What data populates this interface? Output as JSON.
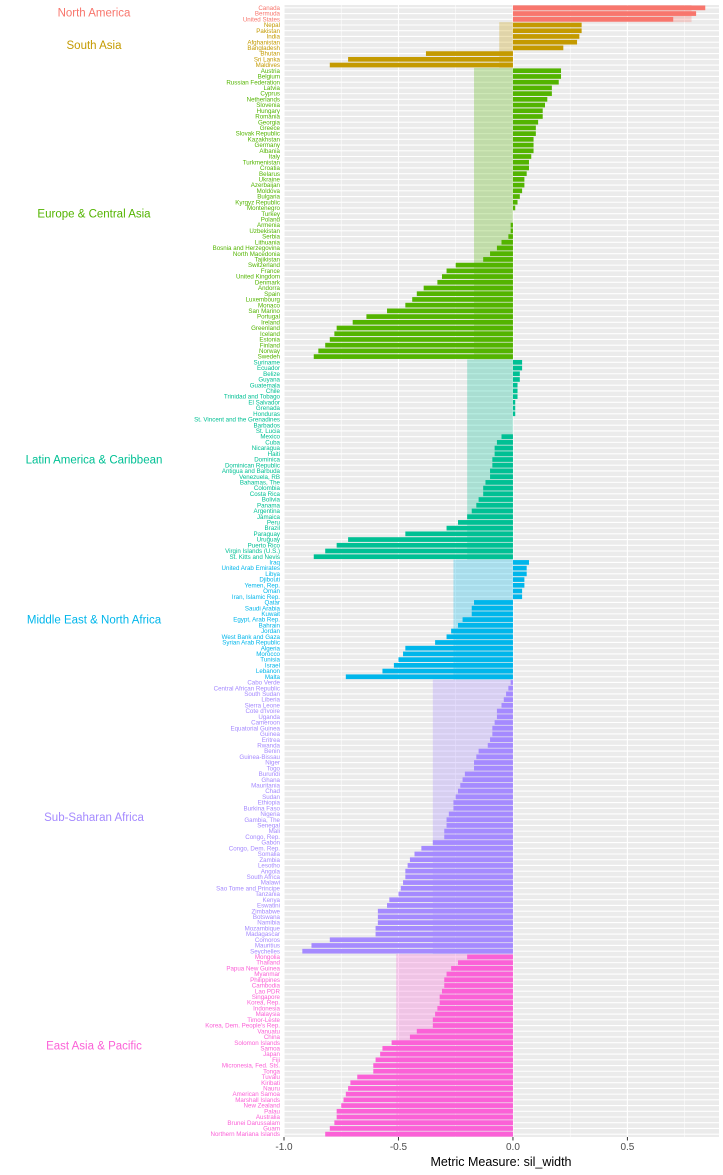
{
  "chart_data": {
    "type": "bar",
    "orientation": "horizontal",
    "xlabel": "Metric Measure: sil_width",
    "ylabel": "",
    "xlim": [
      -1.0,
      0.9
    ],
    "xticks": [
      -1.0,
      -0.5,
      0.0,
      0.5
    ],
    "xtick_labels": [
      "-1.0",
      "-0.5",
      "0.0",
      "0.5"
    ],
    "grid": true,
    "legend": "none",
    "background": "#ebebeb",
    "groups": [
      {
        "name": "North America",
        "color": "#f8766d",
        "mean": 0.78,
        "countries": [
          "Canada",
          "Bermuda",
          "United States"
        ],
        "values": [
          0.84,
          0.8,
          0.7
        ]
      },
      {
        "name": "South Asia",
        "color": "#c49a00",
        "mean": -0.06,
        "countries": [
          "Nepal",
          "Pakistan",
          "India",
          "Afghanistan",
          "Bangladesh",
          "Bhutan",
          "Sri Lanka",
          "Maldives"
        ],
        "values": [
          0.3,
          0.3,
          0.29,
          0.28,
          0.22,
          -0.38,
          -0.72,
          -0.8
        ]
      },
      {
        "name": "Europe & Central Asia",
        "color": "#53b400",
        "mean": -0.17,
        "countries": [
          "Austria",
          "Belgium",
          "Russian Federation",
          "Latvia",
          "Cyprus",
          "Netherlands",
          "Slovenia",
          "Hungary",
          "Romania",
          "Georgia",
          "Greece",
          "Slovak Republic",
          "Kazakhstan",
          "Germany",
          "Albania",
          "Italy",
          "Turkmenistan",
          "Croatia",
          "Belarus",
          "Ukraine",
          "Azerbaijan",
          "Moldova",
          "Bulgaria",
          "Kyrgyz Republic",
          "Montenegro",
          "Turkey",
          "Poland",
          "Armenia",
          "Uzbekistan",
          "Serbia",
          "Lithuania",
          "Bosnia and Herzegovina",
          "North Macedonia",
          "Tajikistan",
          "Switzerland",
          "France",
          "United Kingdom",
          "Denmark",
          "Andorra",
          "Spain",
          "Luxembourg",
          "Monaco",
          "San Marino",
          "Portugal",
          "Ireland",
          "Greenland",
          "Iceland",
          "Estonia",
          "Finland",
          "Norway",
          "Sweden"
        ],
        "values": [
          0.21,
          0.21,
          0.2,
          0.17,
          0.17,
          0.15,
          0.14,
          0.13,
          0.13,
          0.11,
          0.1,
          0.1,
          0.09,
          0.09,
          0.09,
          0.08,
          0.07,
          0.07,
          0.06,
          0.05,
          0.05,
          0.04,
          0.03,
          0.02,
          0.01,
          0.0,
          0.0,
          -0.01,
          -0.01,
          -0.02,
          -0.05,
          -0.07,
          -0.1,
          -0.13,
          -0.25,
          -0.29,
          -0.31,
          -0.33,
          -0.39,
          -0.42,
          -0.44,
          -0.47,
          -0.55,
          -0.64,
          -0.7,
          -0.77,
          -0.78,
          -0.8,
          -0.82,
          -0.85,
          -0.87
        ]
      },
      {
        "name": "Latin America & Caribbean",
        "color": "#00c094",
        "mean": -0.2,
        "countries": [
          "Suriname",
          "Ecuador",
          "Belize",
          "Guyana",
          "Guatemala",
          "Chile",
          "Trinidad and Tobago",
          "El Salvador",
          "Grenada",
          "Honduras",
          "St. Vincent and the Grenadines",
          "Barbados",
          "St. Lucia",
          "Mexico",
          "Cuba",
          "Nicaragua",
          "Haiti",
          "Dominica",
          "Dominican Republic",
          "Antigua and Barbuda",
          "Venezuela, RB",
          "Bahamas, The",
          "Colombia",
          "Costa Rica",
          "Bolivia",
          "Panama",
          "Argentina",
          "Jamaica",
          "Peru",
          "Brazil",
          "Paraguay",
          "Uruguay",
          "Puerto Rico",
          "Virgin Islands (U.S.)",
          "St. Kitts and Nevis"
        ],
        "values": [
          0.04,
          0.04,
          0.03,
          0.03,
          0.02,
          0.02,
          0.02,
          0.01,
          0.01,
          0.01,
          0.0,
          0.0,
          0.0,
          -0.05,
          -0.07,
          -0.08,
          -0.08,
          -0.09,
          -0.09,
          -0.1,
          -0.1,
          -0.12,
          -0.13,
          -0.13,
          -0.15,
          -0.16,
          -0.18,
          -0.2,
          -0.24,
          -0.29,
          -0.47,
          -0.72,
          -0.77,
          -0.82,
          -0.87
        ]
      },
      {
        "name": "Middle East & North Africa",
        "color": "#00b6eb",
        "mean": -0.26,
        "countries": [
          "Iraq",
          "United Arab Emirates",
          "Libya",
          "Djibouti",
          "Yemen, Rep.",
          "Oman",
          "Iran, Islamic Rep.",
          "Qatar",
          "Saudi Arabia",
          "Kuwait",
          "Egypt, Arab Rep.",
          "Bahrain",
          "Jordan",
          "West Bank and Gaza",
          "Syrian Arab Republic",
          "Algeria",
          "Morocco",
          "Tunisia",
          "Israel",
          "Lebanon",
          "Malta"
        ],
        "values": [
          0.07,
          0.06,
          0.06,
          0.05,
          0.05,
          0.04,
          0.04,
          -0.17,
          -0.18,
          -0.18,
          -0.22,
          -0.24,
          -0.27,
          -0.29,
          -0.34,
          -0.47,
          -0.48,
          -0.5,
          -0.52,
          -0.57,
          -0.73
        ]
      },
      {
        "name": "Sub-Saharan Africa",
        "color": "#a58aff",
        "mean": -0.35,
        "countries": [
          "Cabo Verde",
          "Central African Republic",
          "South Sudan",
          "Liberia",
          "Sierra Leone",
          "Cote d'Ivoire",
          "Uganda",
          "Cameroon",
          "Equatorial Guinea",
          "Guinea",
          "Eritrea",
          "Rwanda",
          "Benin",
          "Guinea-Bissau",
          "Niger",
          "Togo",
          "Burundi",
          "Ghana",
          "Mauritania",
          "Chad",
          "Sudan",
          "Ethiopia",
          "Burkina Faso",
          "Nigeria",
          "Gambia, The",
          "Senegal",
          "Mali",
          "Congo, Rep.",
          "Gabon",
          "Congo, Dem. Rep.",
          "Somalia",
          "Zambia",
          "Lesotho",
          "Angola",
          "South Africa",
          "Malawi",
          "Sao Tome and Principe",
          "Tanzania",
          "Kenya",
          "Eswatini",
          "Zimbabwe",
          "Botswana",
          "Namibia",
          "Mozambique",
          "Madagascar",
          "Comoros",
          "Mauritius",
          "Seychelles"
        ],
        "values": [
          -0.01,
          -0.02,
          -0.03,
          -0.04,
          -0.05,
          -0.07,
          -0.07,
          -0.08,
          -0.09,
          -0.09,
          -0.1,
          -0.11,
          -0.15,
          -0.16,
          -0.17,
          -0.17,
          -0.21,
          -0.22,
          -0.23,
          -0.24,
          -0.25,
          -0.26,
          -0.26,
          -0.28,
          -0.29,
          -0.29,
          -0.3,
          -0.3,
          -0.35,
          -0.4,
          -0.43,
          -0.45,
          -0.46,
          -0.47,
          -0.47,
          -0.48,
          -0.49,
          -0.5,
          -0.54,
          -0.55,
          -0.59,
          -0.59,
          -0.59,
          -0.6,
          -0.6,
          -0.8,
          -0.88,
          -0.92
        ]
      },
      {
        "name": "East Asia & Pacific",
        "color": "#fb61d7",
        "mean": -0.51,
        "countries": [
          "Mongolia",
          "Thailand",
          "Papua New Guinea",
          "Myanmar",
          "Philippines",
          "Cambodia",
          "Lao PDR",
          "Singapore",
          "Korea, Rep.",
          "Indonesia",
          "Malaysia",
          "Timor-Leste",
          "Korea, Dem. People's Rep.",
          "Vanuatu",
          "China",
          "Solomon Islands",
          "Samoa",
          "Japan",
          "Fiji",
          "Micronesia, Fed. Sts.",
          "Tonga",
          "Tuvalu",
          "Kiribati",
          "Nauru",
          "American Samoa",
          "Marshall Islands",
          "New Zealand",
          "Palau",
          "Australia",
          "Brunei Darussalam",
          "Guam",
          "Northern Mariana Islands"
        ],
        "values": [
          -0.2,
          -0.24,
          -0.27,
          -0.29,
          -0.3,
          -0.3,
          -0.31,
          -0.32,
          -0.32,
          -0.33,
          -0.34,
          -0.35,
          -0.35,
          -0.42,
          -0.45,
          -0.53,
          -0.57,
          -0.58,
          -0.6,
          -0.61,
          -0.61,
          -0.68,
          -0.71,
          -0.72,
          -0.73,
          -0.74,
          -0.75,
          -0.77,
          -0.77,
          -0.78,
          -0.8,
          -0.82
        ]
      }
    ]
  }
}
